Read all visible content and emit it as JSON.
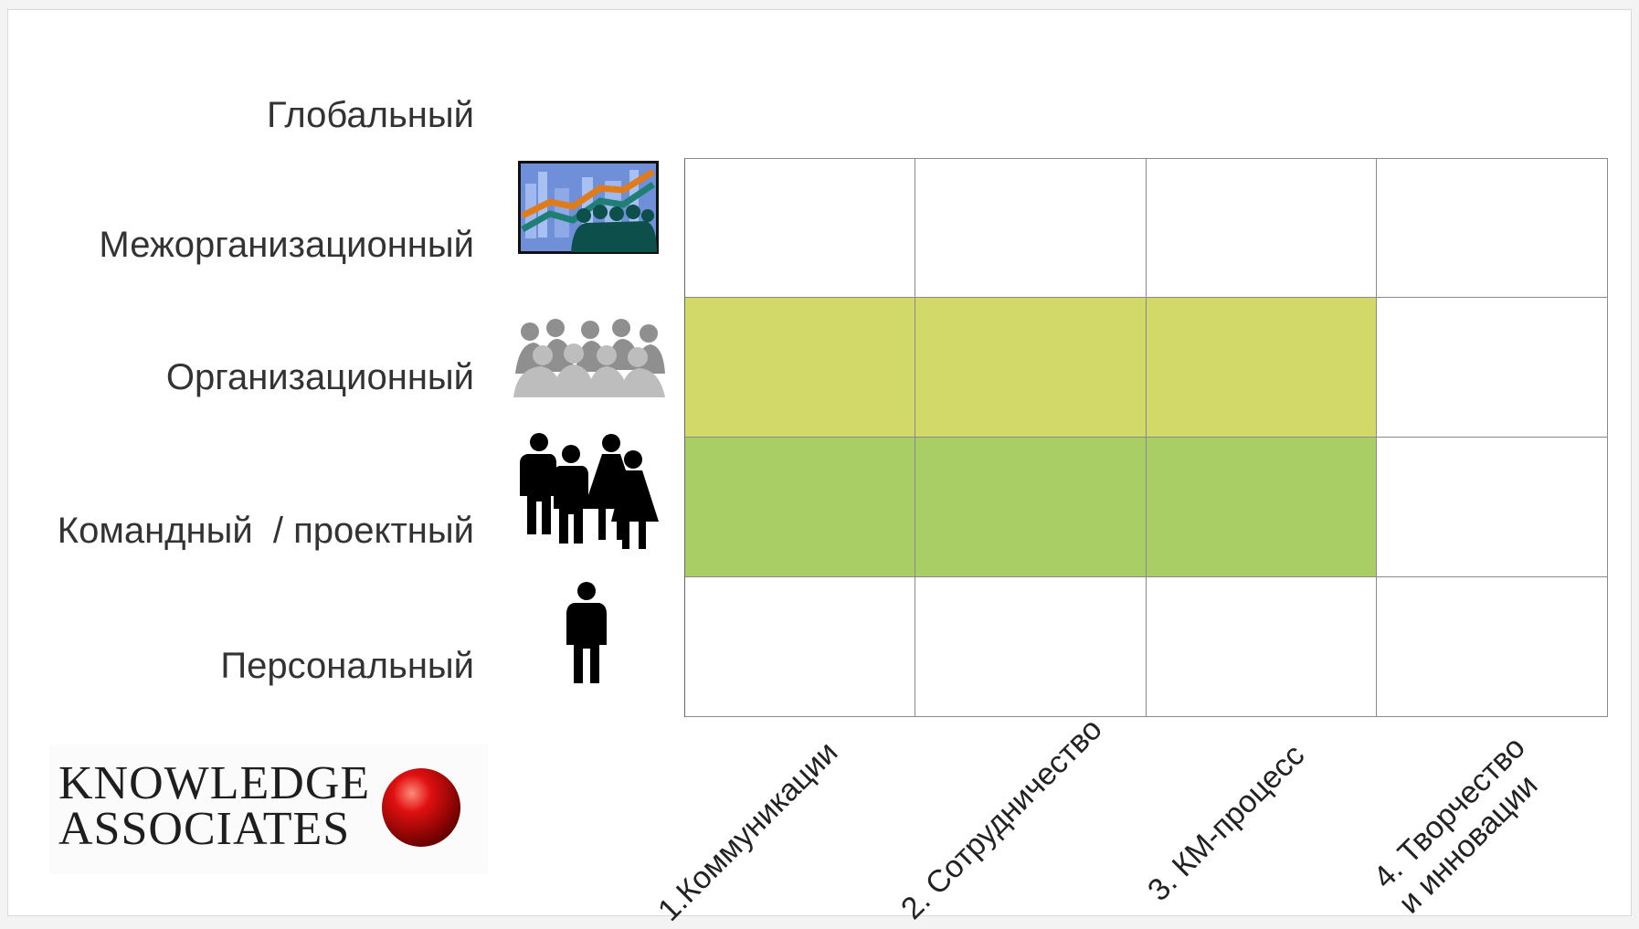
{
  "levels": [
    {
      "label": "Глобальный"
    },
    {
      "label": "Межорганизационный"
    },
    {
      "label": "Организационный"
    },
    {
      "label": "Командный  / проектный"
    },
    {
      "label": "Персональный"
    }
  ],
  "icons": [
    "chart-presentation-icon",
    "crowd-icon",
    "team-icon",
    "person-icon"
  ],
  "columns": [
    {
      "label": "1.Коммуникации"
    },
    {
      "label": "2. Сотрудничество"
    },
    {
      "label": "3. КМ-процесс"
    },
    {
      "label": "4. Творчество\nи инновации"
    }
  ],
  "grid": {
    "rows": [
      [
        "white",
        "white",
        "white",
        "white"
      ],
      [
        "#d2d968",
        "#d2d968",
        "#d2d968",
        "white"
      ],
      [
        "#a9ce65",
        "#a9ce65",
        "#a9ce65",
        "white"
      ],
      [
        "white",
        "white",
        "white",
        "white"
      ]
    ]
  },
  "logo": {
    "line1": "KNOWLEDGE",
    "line2": "ASSOCIATES"
  }
}
